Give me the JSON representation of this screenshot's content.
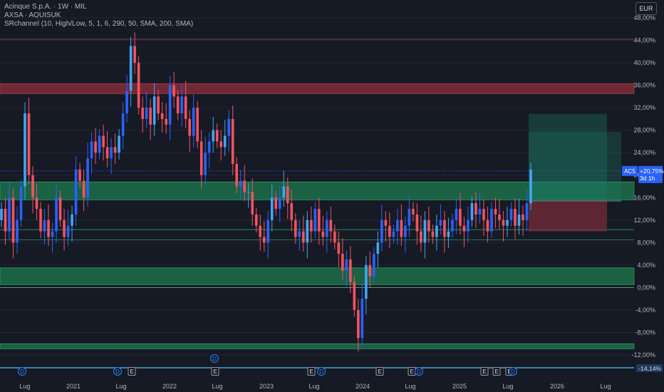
{
  "legend": {
    "title": "Acinque S.p.A. · 1W · MIL",
    "line2": "AXSA · AQUISUK",
    "line3": "SRchannel (10, High/Low, 5, 1, 6, 290, 50, SMA, 200, SMA)"
  },
  "currency_button": "EUR",
  "colors": {
    "up": "#2962ff",
    "up_light": "#42a5f5",
    "down": "#f7525f",
    "support_zone": "#1e7a4e",
    "resistance_zone": "#8e2f3c",
    "price_label": "#2962ff",
    "event_label": "#2b7fff"
  },
  "chart_data": {
    "type": "candlestick",
    "y_axis": {
      "ticks": [
        "48,00%",
        "44,00%",
        "40,00%",
        "36,00%",
        "32,00%",
        "28,00%",
        "24,00%",
        "20,00%",
        "16,00%",
        "12,00%",
        "8,00%",
        "4,00%",
        "0,00%",
        "-4,00%",
        "-8,00%",
        "-12,00%"
      ],
      "ylim": [
        -12,
        48
      ],
      "unit": "%"
    },
    "x_axis": {
      "ticks": [
        "Lug",
        "2021",
        "Lug",
        "2022",
        "Lug",
        "2023",
        "Lug",
        "2024",
        "Lug",
        "2025",
        "Lug",
        "2026",
        "Lug"
      ]
    },
    "zones": [
      {
        "kind": "resistance",
        "from": 34.5,
        "to": 36.3
      },
      {
        "kind": "support",
        "from": 15.6,
        "to": 18.8
      },
      {
        "kind": "support",
        "from": 0.5,
        "to": 3.5
      },
      {
        "kind": "support",
        "from": -10.9,
        "to": -10.0
      }
    ],
    "lines": [
      44.2,
      20.75,
      10.3,
      8.5,
      0.0
    ],
    "position_tool": {
      "entry": 15.4,
      "target": 30.9,
      "stop": 10.0
    },
    "current": {
      "ticker": "AC5",
      "value": "+20,75%",
      "countdown": "3d 1h"
    },
    "bottom_label": "-14,14%",
    "events": [
      {
        "label": "D",
        "shape": "circle",
        "row": 1
      },
      {
        "label": "D",
        "shape": "circle",
        "row": 1
      },
      {
        "label": "E",
        "shape": "square",
        "row": 1
      },
      {
        "label": "D",
        "shape": "circle",
        "row": 0
      },
      {
        "label": "E",
        "shape": "square",
        "row": 1
      },
      {
        "label": "E",
        "shape": "square",
        "row": 1
      },
      {
        "label": "D",
        "shape": "circle",
        "row": 1
      },
      {
        "label": "E",
        "shape": "square",
        "row": 1
      },
      {
        "label": "E",
        "shape": "square",
        "row": 1
      },
      {
        "label": "D",
        "shape": "circle",
        "row": 1
      },
      {
        "label": "E",
        "shape": "square",
        "row": 1
      },
      {
        "label": "E",
        "shape": "square",
        "row": 1
      },
      {
        "label": "D",
        "shape": "circle",
        "row": 1
      },
      {
        "label": "E",
        "shape": "square",
        "row": 1
      }
    ],
    "series_close": [
      14,
      10,
      16,
      8,
      12,
      18,
      31,
      20,
      16,
      14,
      10,
      12,
      9,
      10,
      16,
      12,
      9,
      11,
      13,
      21,
      19,
      16,
      23,
      26,
      24,
      27,
      25,
      23,
      25,
      24,
      27,
      31,
      35,
      43,
      40,
      32,
      30,
      32,
      29,
      34,
      31,
      30,
      29,
      36,
      34,
      31,
      34,
      30,
      27,
      32,
      26,
      20,
      24,
      26,
      28,
      26,
      25,
      27,
      30,
      22,
      18,
      19,
      17,
      17,
      13,
      11,
      9,
      8,
      12,
      16,
      14,
      16,
      18,
      15,
      12,
      9,
      10,
      8,
      12,
      10,
      14,
      10,
      9,
      12,
      10,
      8,
      6,
      3,
      5,
      1,
      -4,
      -9,
      -2,
      4,
      2,
      6,
      8,
      12,
      11,
      9,
      10,
      12,
      9,
      11,
      14,
      13,
      10,
      8,
      12,
      10,
      9,
      11,
      12,
      9,
      10,
      12,
      14,
      11,
      10,
      12,
      15,
      13,
      14,
      12,
      10,
      14,
      13,
      12,
      11,
      12,
      14,
      11,
      13,
      12,
      15,
      21
    ]
  }
}
